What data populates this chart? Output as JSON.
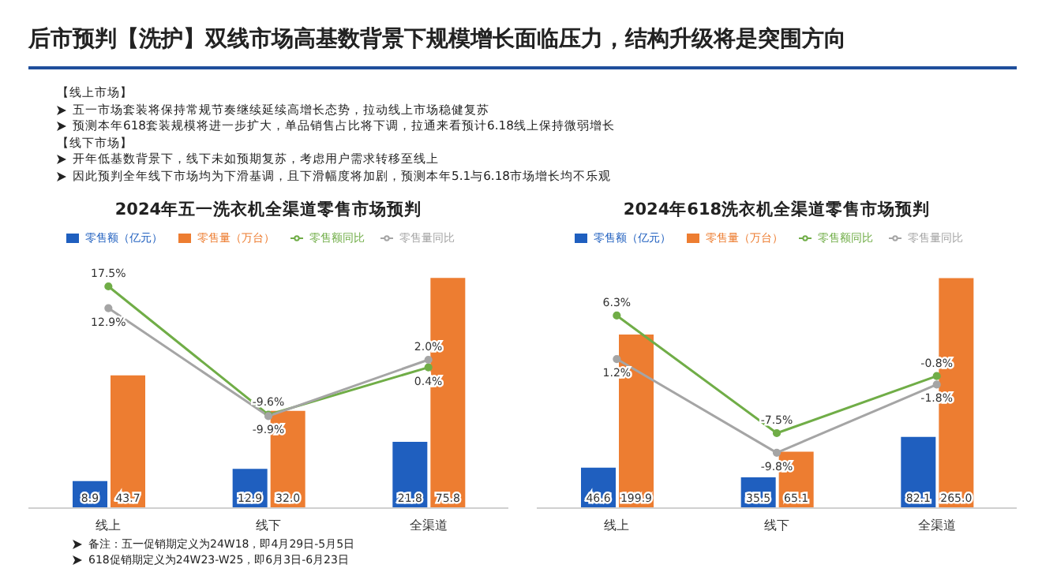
{
  "chart_data": [
    {
      "type": "other",
      "title": "后市预判【洗护】双线市场高基数背景下规模增长面临压力，结构升级将是突围方向",
      "annotations": [
        "【线上市场】",
        "五一市场套装将保持常规节奏继续延续高增长态势，拉动线上市场稳健复苏",
        "预测本年618套装规模将进一步扩大，单品销售占比将下调，拉通来看预计6.18线上保持微弱增长",
        "【线下市场】",
        "开年低基数背景下，线下未如预期复苏，考虑用户需求转移至线上",
        "因此预判全年线下市场均为下滑基调，且下滑幅度将加剧，预测本年5.1与6.18市场增长均不乐观"
      ]
    },
    {
      "type": "bar",
      "title": "2024年五一洗衣机全渠道零售市场预判",
      "categories": [
        "线上",
        "线下",
        "全渠道"
      ],
      "legend": "top",
      "marker": "circle",
      "annotations": [
        "备注：五一促销期定义为24W18，即4月29日-5月5日",
        "618促销期定义为24W23-W25，即6月3日-6月23日"
      ],
      "series": [
        {
          "name": "零售额（亿元）",
          "type": "bar",
          "color": "#1f5fbf",
          "values": [
            8.9,
            12.9,
            21.8
          ],
          "value_labels": [
            "8.9",
            "12.9",
            "21.8"
          ]
        },
        {
          "name": "零售量（万台）",
          "type": "bar",
          "color": "#ed7d31",
          "values": [
            43.7,
            32.0,
            75.8
          ],
          "value_labels": [
            "43.7",
            "32.0",
            "75.8"
          ]
        },
        {
          "name": "零售额同比",
          "type": "line",
          "axis": "y2",
          "color": "#70ad47",
          "values": [
            17.5,
            -9.6,
            0.4
          ],
          "value_labels": [
            "17.5%",
            "-9.6%",
            "0.4%"
          ]
        },
        {
          "name": "零售量同比",
          "type": "line",
          "axis": "y2",
          "color": "#a5a5a5",
          "values": [
            12.9,
            -9.9,
            2.0
          ],
          "value_labels": [
            "12.9%",
            "-9.9%",
            "2.0%"
          ]
        }
      ]
    },
    {
      "type": "bar",
      "title": "2024年618洗衣机全渠道零售市场预判",
      "categories": [
        "线上",
        "线下",
        "全渠道"
      ],
      "legend": "top",
      "marker": "circle",
      "series": [
        {
          "name": "零售额（亿元）",
          "type": "bar",
          "color": "#1f5fbf",
          "values": [
            46.6,
            35.5,
            82.1
          ],
          "value_labels": [
            "46.6",
            "35.5",
            "82.1"
          ]
        },
        {
          "name": "零售量（万台）",
          "type": "bar",
          "color": "#ed7d31",
          "values": [
            199.9,
            65.1,
            265.0
          ],
          "value_labels": [
            "199.9",
            "65.1",
            "265.0"
          ]
        },
        {
          "name": "零售额同比",
          "type": "line",
          "axis": "y2",
          "color": "#70ad47",
          "values": [
            6.3,
            -7.5,
            -0.8
          ],
          "value_labels": [
            "6.3%",
            "-7.5%",
            "-0.8%"
          ]
        },
        {
          "name": "零售量同比",
          "type": "line",
          "axis": "y2",
          "color": "#a5a5a5",
          "values": [
            1.2,
            -9.8,
            -1.8
          ],
          "value_labels": [
            "1.2%",
            "-9.8%",
            "-1.8%"
          ]
        }
      ]
    }
  ]
}
